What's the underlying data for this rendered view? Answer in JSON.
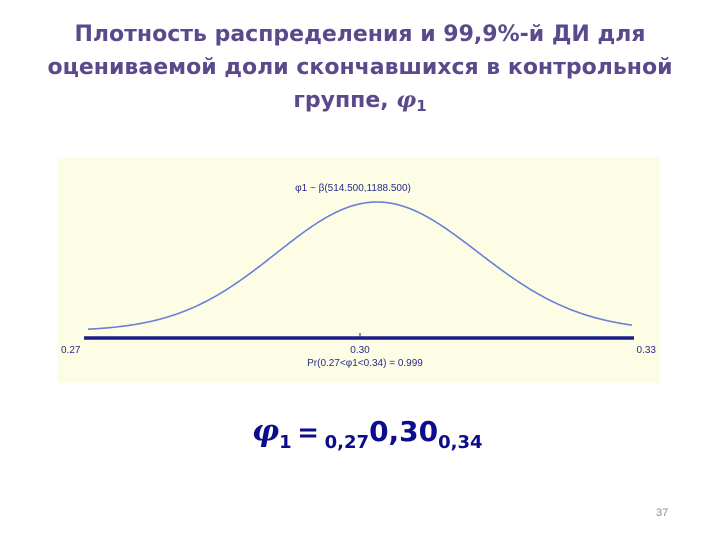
{
  "slide": {
    "title_line1": "Плотность распределения и 99,9%-й ДИ для",
    "title_line2": "оцениваемой доли скончавшихся в контрольной",
    "title_line3": "группе,",
    "title_symbol": "φ",
    "title_subscript": "1",
    "page_number": "37"
  },
  "formula": {
    "symbol": "φ",
    "symbol_sub": "1",
    "equals": "=",
    "lower": "0,27",
    "estimate": "0,30",
    "upper": "0,34"
  },
  "chart_data": {
    "type": "line",
    "distribution_label": "φ1 ~ β(514.500,1188.500)",
    "alpha": 514.5,
    "beta": 1188.5,
    "xlim": [
      0.27,
      0.33
    ],
    "tick_labels": {
      "left": "0.27",
      "center": "0.30",
      "right": "0.33"
    },
    "probability_label": "Pr(0.27<φ1<0.34) = 0.999",
    "colors": {
      "curve": "#6a7fd6",
      "axis": "#1c1c8a",
      "background": "#fdfde6",
      "text": "#2a2a8a"
    }
  }
}
